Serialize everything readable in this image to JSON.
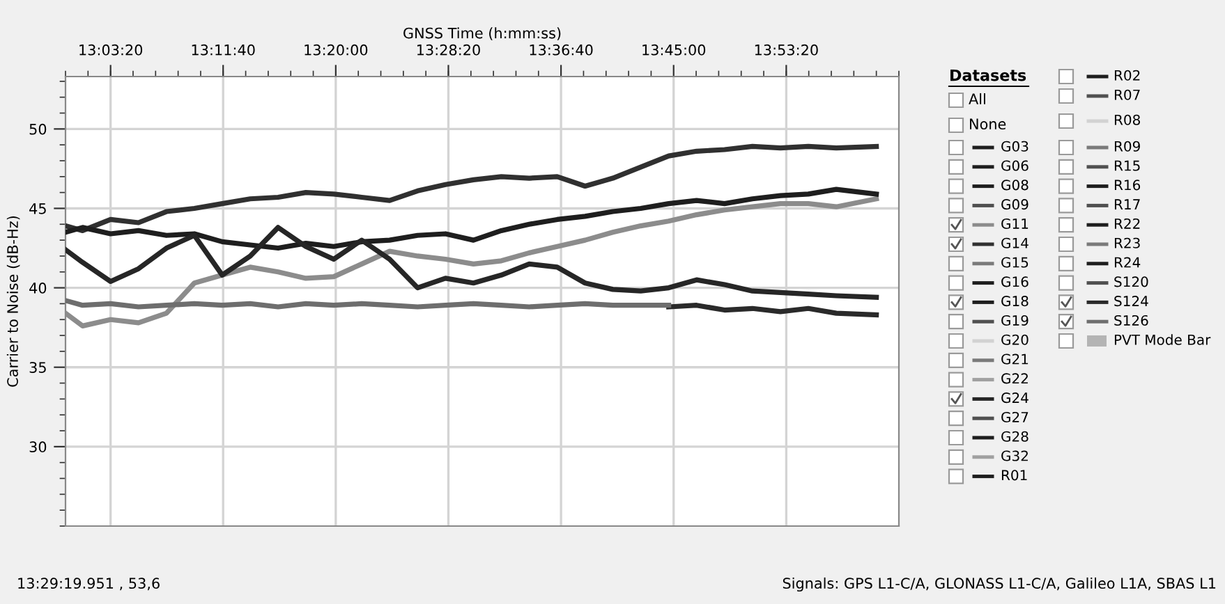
{
  "chart_data": {
    "type": "line",
    "xlabel": "GNSS Time (h:mm:ss)",
    "ylabel": "Carrier to Noise (dB-Hz)",
    "legend_title": "Datasets",
    "xlim": [
      13.0,
      14.0278
    ],
    "ylim": [
      25,
      53.3
    ],
    "xticks": [
      {
        "value": 13.0556,
        "label": "13:03:20"
      },
      {
        "value": 13.1944,
        "label": "13:11:40"
      },
      {
        "value": 13.3333,
        "label": "13:20:00"
      },
      {
        "value": 13.4722,
        "label": "13:28:20"
      },
      {
        "value": 13.6111,
        "label": "13:36:40"
      },
      {
        "value": 13.75,
        "label": "13:45:00"
      },
      {
        "value": 13.8889,
        "label": "13:53:20"
      }
    ],
    "yticks": [
      30,
      35,
      40,
      45,
      50
    ],
    "grid": true,
    "legend": "right",
    "line_style": "solid",
    "x": [
      13.0,
      13.0211,
      13.0556,
      13.09,
      13.1245,
      13.1589,
      13.1933,
      13.2278,
      13.2622,
      13.2964,
      13.3308,
      13.3653,
      13.3997,
      13.4342,
      13.4686,
      13.5031,
      13.5375,
      13.5719,
      13.6064,
      13.6408,
      13.675,
      13.7094,
      13.7439,
      13.7783,
      13.8128,
      13.8472,
      13.8817,
      13.9161,
      13.9506,
      14.0
    ],
    "series": [
      {
        "name": "G03",
        "color": "#1e1e1e",
        "values": [
          null,
          null,
          null,
          null,
          null,
          null,
          null,
          null,
          null,
          null,
          null,
          null,
          null,
          null,
          null,
          null,
          null,
          null,
          null,
          null,
          null,
          null,
          null,
          null,
          null,
          null,
          null,
          null,
          null,
          null
        ]
      },
      {
        "name": "G06",
        "color": "#1e1e1e",
        "values": [
          null,
          null,
          null,
          null,
          null,
          null,
          null,
          null,
          null,
          null,
          null,
          null,
          null,
          null,
          null,
          null,
          null,
          null,
          null,
          null,
          null,
          null,
          null,
          null,
          null,
          null,
          null,
          null,
          null,
          null
        ]
      },
      {
        "name": "G08",
        "color": "#1e1e1e",
        "values": [
          null,
          null,
          null,
          null,
          null,
          null,
          null,
          null,
          null,
          null,
          null,
          null,
          null,
          null,
          null,
          null,
          null,
          null,
          null,
          null,
          null,
          null,
          null,
          null,
          null,
          null,
          null,
          null,
          null,
          null
        ]
      },
      {
        "name": "G09",
        "color": "#505050",
        "values": [
          null,
          null,
          null,
          null,
          null,
          null,
          null,
          null,
          null,
          null,
          null,
          null,
          null,
          null,
          null,
          null,
          null,
          null,
          null,
          null,
          null,
          null,
          null,
          null,
          null,
          null,
          null,
          null,
          null,
          null
        ]
      },
      {
        "name": "G11",
        "color": "#8c8c8c",
        "values": [
          38.4,
          37.6,
          38.0,
          37.8,
          38.4,
          40.3,
          40.8,
          41.3,
          41.0,
          40.6,
          40.7,
          41.5,
          42.3,
          42.0,
          41.8,
          41.5,
          41.7,
          42.2,
          42.6,
          43.0,
          43.5,
          43.9,
          44.2,
          44.6,
          44.9,
          45.1,
          45.3,
          45.3,
          45.1,
          45.6
        ]
      },
      {
        "name": "G14",
        "color": "#303030",
        "values": [
          43.9,
          43.6,
          44.3,
          44.1,
          44.8,
          45.0,
          45.3,
          45.6,
          45.7,
          46.0,
          45.9,
          45.7,
          45.5,
          46.1,
          46.5,
          46.8,
          47.0,
          46.9,
          47.0,
          46.4,
          46.9,
          47.6,
          48.3,
          48.6,
          48.7,
          48.9,
          48.8,
          48.9,
          48.8,
          48.9
        ]
      },
      {
        "name": "G15",
        "color": "#7a7a7a",
        "values": [
          null,
          null,
          null,
          null,
          null,
          null,
          null,
          null,
          null,
          null,
          null,
          null,
          null,
          null,
          null,
          null,
          null,
          null,
          null,
          null,
          null,
          null,
          null,
          null,
          null,
          null,
          null,
          null,
          null,
          null
        ]
      },
      {
        "name": "G16",
        "color": "#1e1e1e",
        "values": [
          null,
          null,
          null,
          null,
          null,
          null,
          null,
          null,
          null,
          null,
          null,
          null,
          null,
          null,
          null,
          null,
          null,
          null,
          null,
          null,
          null,
          null,
          null,
          null,
          null,
          null,
          null,
          null,
          null,
          null
        ]
      },
      {
        "name": "G18",
        "color": "#1e1e1e",
        "values": [
          43.5,
          43.8,
          43.4,
          43.6,
          43.3,
          43.4,
          42.9,
          42.7,
          42.5,
          42.8,
          42.6,
          42.9,
          43.0,
          43.3,
          43.4,
          43.0,
          43.6,
          44.0,
          44.3,
          44.5,
          44.8,
          45.0,
          45.3,
          45.5,
          45.3,
          45.6,
          45.8,
          45.9,
          46.2,
          45.9
        ]
      },
      {
        "name": "G19",
        "color": "#505050",
        "values": [
          null,
          null,
          null,
          null,
          null,
          null,
          null,
          null,
          null,
          null,
          null,
          null,
          null,
          null,
          null,
          null,
          null,
          null,
          null,
          null,
          null,
          null,
          null,
          null,
          null,
          null,
          null,
          null,
          null,
          null
        ]
      },
      {
        "name": "G20",
        "color": "#d2d2d2",
        "values": [
          null,
          null,
          null,
          null,
          null,
          null,
          null,
          null,
          null,
          null,
          null,
          null,
          null,
          null,
          null,
          null,
          null,
          null,
          null,
          null,
          null,
          null,
          null,
          null,
          null,
          null,
          null,
          null,
          null,
          null
        ]
      },
      {
        "name": "G21",
        "color": "#7a7a7a",
        "values": [
          null,
          null,
          null,
          null,
          null,
          null,
          null,
          null,
          null,
          null,
          null,
          null,
          null,
          null,
          null,
          null,
          null,
          null,
          null,
          null,
          null,
          null,
          null,
          null,
          null,
          null,
          null,
          null,
          null,
          null
        ]
      },
      {
        "name": "G22",
        "color": "#a0a0a0",
        "values": [
          null,
          null,
          null,
          null,
          null,
          null,
          null,
          null,
          null,
          null,
          null,
          null,
          null,
          null,
          null,
          null,
          null,
          null,
          null,
          null,
          null,
          null,
          null,
          null,
          null,
          null,
          null,
          null,
          null,
          null
        ]
      },
      {
        "name": "G24",
        "color": "#262626",
        "values": [
          42.4,
          41.6,
          40.4,
          41.2,
          42.5,
          43.3,
          40.8,
          42.0,
          43.8,
          42.6,
          41.8,
          43.0,
          41.8,
          40.0,
          40.6,
          40.3,
          40.8,
          41.5,
          41.3,
          40.3,
          39.9,
          39.8,
          40.0,
          40.5,
          40.2,
          39.8,
          39.7,
          39.6,
          39.5,
          39.4
        ]
      },
      {
        "name": "G27",
        "color": "#505050",
        "values": [
          null,
          null,
          null,
          null,
          null,
          null,
          null,
          null,
          null,
          null,
          null,
          null,
          null,
          null,
          null,
          null,
          null,
          null,
          null,
          null,
          null,
          null,
          null,
          null,
          null,
          null,
          null,
          null,
          null,
          null
        ]
      },
      {
        "name": "G28",
        "color": "#1e1e1e",
        "values": [
          null,
          null,
          null,
          null,
          null,
          null,
          null,
          null,
          null,
          null,
          null,
          null,
          null,
          null,
          null,
          null,
          null,
          null,
          null,
          null,
          null,
          null,
          null,
          null,
          null,
          null,
          null,
          null,
          null,
          null
        ]
      },
      {
        "name": "G32",
        "color": "#a0a0a0",
        "values": [
          null,
          null,
          null,
          null,
          null,
          null,
          null,
          null,
          null,
          null,
          null,
          null,
          null,
          null,
          null,
          null,
          null,
          null,
          null,
          null,
          null,
          null,
          null,
          null,
          null,
          null,
          null,
          null,
          null,
          null
        ]
      },
      {
        "name": "R01",
        "color": "#1e1e1e",
        "values": [
          null,
          null,
          null,
          null,
          null,
          null,
          null,
          null,
          null,
          null,
          null,
          null,
          null,
          null,
          null,
          null,
          null,
          null,
          null,
          null,
          null,
          null,
          null,
          null,
          null,
          null,
          null,
          null,
          null,
          null
        ]
      },
      {
        "name": "R02",
        "color": "#1e1e1e",
        "values": [
          null,
          null,
          null,
          null,
          null,
          null,
          null,
          null,
          null,
          null,
          null,
          null,
          null,
          null,
          null,
          null,
          null,
          null,
          null,
          null,
          null,
          null,
          null,
          null,
          null,
          null,
          null,
          null,
          null,
          null
        ]
      },
      {
        "name": "R07",
        "color": "#505050",
        "values": [
          null,
          null,
          null,
          null,
          null,
          null,
          null,
          null,
          null,
          null,
          null,
          null,
          null,
          null,
          null,
          null,
          null,
          null,
          null,
          null,
          null,
          null,
          null,
          null,
          null,
          null,
          null,
          null,
          null,
          null
        ]
      },
      {
        "name": "R08",
        "color": "#d2d2d2",
        "values": [
          null,
          null,
          null,
          null,
          null,
          null,
          null,
          null,
          null,
          null,
          null,
          null,
          null,
          null,
          null,
          null,
          null,
          null,
          null,
          null,
          null,
          null,
          null,
          null,
          null,
          null,
          null,
          null,
          null,
          null
        ]
      },
      {
        "name": "R09",
        "color": "#7a7a7a",
        "values": [
          null,
          null,
          null,
          null,
          null,
          null,
          null,
          null,
          null,
          null,
          null,
          null,
          null,
          null,
          null,
          null,
          null,
          null,
          null,
          null,
          null,
          null,
          null,
          null,
          null,
          null,
          null,
          null,
          null,
          null
        ]
      },
      {
        "name": "R15",
        "color": "#505050",
        "values": [
          null,
          null,
          null,
          null,
          null,
          null,
          null,
          null,
          null,
          null,
          null,
          null,
          null,
          null,
          null,
          null,
          null,
          null,
          null,
          null,
          null,
          null,
          null,
          null,
          null,
          null,
          null,
          null,
          null,
          null
        ]
      },
      {
        "name": "R16",
        "color": "#1e1e1e",
        "values": [
          null,
          null,
          null,
          null,
          null,
          null,
          null,
          null,
          null,
          null,
          null,
          null,
          null,
          null,
          null,
          null,
          null,
          null,
          null,
          null,
          null,
          null,
          null,
          null,
          null,
          null,
          null,
          null,
          null,
          null
        ]
      },
      {
        "name": "R17",
        "color": "#505050",
        "values": [
          null,
          null,
          null,
          null,
          null,
          null,
          null,
          null,
          null,
          null,
          null,
          null,
          null,
          null,
          null,
          null,
          null,
          null,
          null,
          null,
          null,
          null,
          null,
          null,
          null,
          null,
          null,
          null,
          null,
          null
        ]
      },
      {
        "name": "R22",
        "color": "#1e1e1e",
        "values": [
          null,
          null,
          null,
          null,
          null,
          null,
          null,
          null,
          null,
          null,
          null,
          null,
          null,
          null,
          null,
          null,
          null,
          null,
          null,
          null,
          null,
          null,
          null,
          null,
          null,
          null,
          null,
          null,
          null,
          null
        ]
      },
      {
        "name": "R23",
        "color": "#7a7a7a",
        "values": [
          null,
          null,
          null,
          null,
          null,
          null,
          null,
          null,
          null,
          null,
          null,
          null,
          null,
          null,
          null,
          null,
          null,
          null,
          null,
          null,
          null,
          null,
          null,
          null,
          null,
          null,
          null,
          null,
          null,
          null
        ]
      },
      {
        "name": "R24",
        "color": "#1e1e1e",
        "values": [
          null,
          null,
          null,
          null,
          null,
          null,
          null,
          null,
          null,
          null,
          null,
          null,
          null,
          null,
          null,
          null,
          null,
          null,
          null,
          null,
          null,
          null,
          null,
          null,
          null,
          null,
          null,
          null,
          null,
          null
        ]
      },
      {
        "name": "S120",
        "color": "#505050",
        "values": [
          null,
          null,
          null,
          null,
          null,
          null,
          null,
          null,
          null,
          null,
          null,
          null,
          null,
          null,
          null,
          null,
          null,
          null,
          null,
          null,
          null,
          null,
          null,
          null,
          null,
          null,
          null,
          null,
          null,
          null
        ]
      },
      {
        "name": "S124",
        "color": "#2a2a2a",
        "values": [
          null,
          null,
          null,
          null,
          null,
          null,
          null,
          null,
          null,
          null,
          null,
          null,
          null,
          null,
          null,
          null,
          null,
          null,
          null,
          null,
          null,
          null,
          38.8,
          38.9,
          38.6,
          38.7,
          38.5,
          38.7,
          38.4,
          38.3
        ]
      },
      {
        "name": "S126",
        "color": "#6e6e6e",
        "values": [
          39.2,
          38.9,
          39.0,
          38.8,
          38.9,
          39.0,
          38.9,
          39.0,
          38.8,
          39.0,
          38.9,
          39.0,
          38.9,
          38.8,
          38.9,
          39.0,
          38.9,
          38.8,
          38.9,
          39.0,
          38.9,
          38.9,
          38.9,
          null,
          null,
          null,
          null,
          null,
          null,
          null
        ]
      },
      {
        "name": "PVT Mode Bar",
        "type": "bar",
        "color": "#b4b4b4",
        "values": [
          null,
          null,
          null,
          null,
          null,
          null,
          null,
          null,
          null,
          null,
          null,
          null,
          null,
          null,
          null,
          null,
          null,
          null,
          null,
          null,
          null,
          null,
          null,
          null,
          null,
          null,
          null,
          null,
          null,
          null
        ]
      }
    ],
    "annotations": [
      "All",
      "None",
      "13:29:19.951 , 53,6",
      "Signals: GPS L1-C/A, GLONASS L1-C/A, Galileo L1A, SBAS L1"
    ]
  }
}
